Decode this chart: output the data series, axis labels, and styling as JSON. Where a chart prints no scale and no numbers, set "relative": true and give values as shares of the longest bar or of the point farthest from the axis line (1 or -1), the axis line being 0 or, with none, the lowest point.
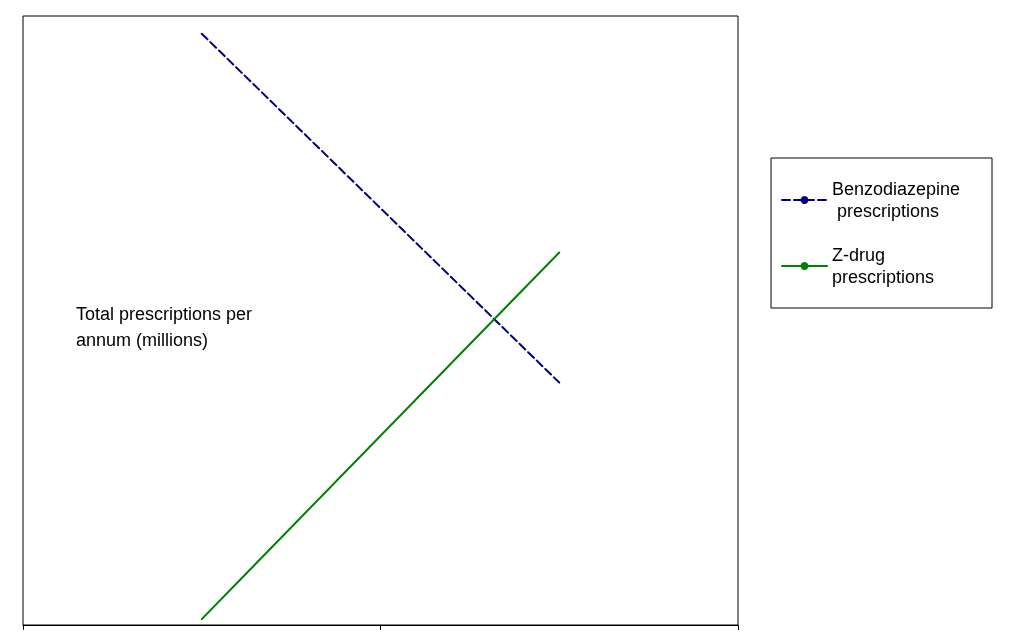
{
  "chart_data": {
    "type": "line",
    "relative": true,
    "ylabel": "Total prescriptions per annum (millions)",
    "categories": [
      null,
      null
    ],
    "legend": "right",
    "grid": false,
    "marker": "none",
    "series": [
      {
        "name": "Benzodiazepine prescriptions",
        "color": "#000080",
        "line_style": "dashed",
        "values": [
          1,
          0.41
        ]
      },
      {
        "name": "Z-drug prescriptions",
        "color": "#008000",
        "line_style": "solid",
        "values": [
          0.01,
          0.63
        ]
      }
    ]
  }
}
